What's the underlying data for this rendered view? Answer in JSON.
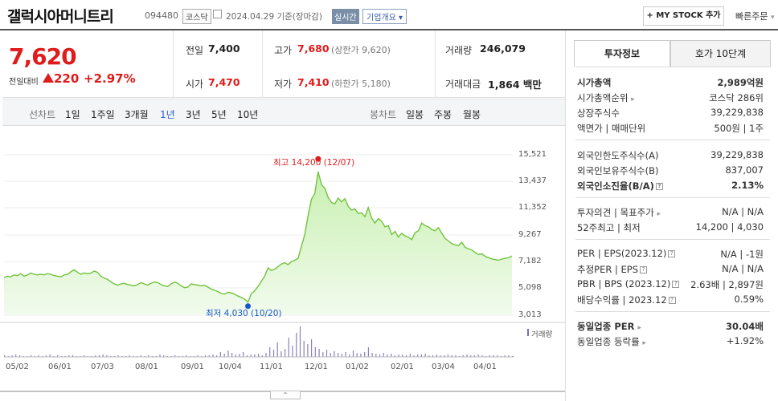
{
  "header": {
    "company_name": "갤럭시아머니트리",
    "code": "094480",
    "market": "코스닥",
    "date": "2024.04.29",
    "basis": "기준(장마감)",
    "live_label": "실시간",
    "company_info": "기업개요",
    "mystock_label": "+ MY STOCK 추가",
    "quick_order": "빠른주문"
  },
  "price": {
    "current": "7,620",
    "change_label": "전일대비",
    "change_value": "220",
    "change_pct": "+2.97%",
    "prev_label": "전일",
    "prev_value": "7,400",
    "high_label": "고가",
    "high_value": "7,680",
    "upper_limit": "(상한가 9,620)",
    "volume_label": "거래량",
    "volume_value": "246,079",
    "open_label": "시가",
    "open_value": "7,470",
    "low_label": "저가",
    "low_value": "7,410",
    "lower_limit": "(하한가 5,180)",
    "amount_label": "거래대금",
    "amount_value": "1,864",
    "amount_unit": "백만"
  },
  "tabs": {
    "line_head": "선차트",
    "line_items": [
      "1일",
      "1주일",
      "3개월",
      "1년",
      "3년",
      "5년",
      "10년"
    ],
    "active": "1년",
    "candle_head": "봉차트",
    "candle_items": [
      "일봉",
      "주봉",
      "월봉"
    ]
  },
  "chart_data": {
    "type": "area",
    "y_ticks": [
      "15,521",
      "13,437",
      "11,352",
      "9,267",
      "7,182",
      "5,098",
      "3,013"
    ],
    "ylim": [
      3013,
      15521
    ],
    "x_ticks": [
      "05/02",
      "06/01",
      "07/03",
      "08/01",
      "09/01",
      "10/04",
      "11/01",
      "12/01",
      "01/02",
      "02/01",
      "03/04",
      "04/01"
    ],
    "high_label": "최고 14,200 (12/07)",
    "low_label": "최저 4,030 (10/20)",
    "high_value": 14200,
    "low_value": 4030,
    "volume_legend": "거래량",
    "line_color": "#72c33d",
    "up_color": "#e01b1b",
    "low_color": "#1a57c9",
    "series": [
      {
        "values": [
          5950,
          6050,
          6000,
          6150,
          6100,
          6250,
          6050,
          6150,
          6300,
          6200,
          6150,
          6200,
          6150,
          6250,
          6200,
          6100,
          6050,
          6000,
          6150,
          6200,
          6400,
          6550,
          6350,
          6200,
          6300,
          6250,
          6300,
          6450,
          6350,
          6050,
          5900,
          5800,
          5600,
          5450,
          5350,
          5450,
          5500,
          5400,
          5350,
          5300,
          5400,
          5550,
          5450,
          5350,
          5500,
          5600,
          5550,
          5400,
          5300,
          5250,
          5450,
          5600,
          5500,
          5300,
          5150,
          5200,
          5450,
          5400,
          5350,
          5300,
          5350,
          5200,
          5050,
          4950,
          4850,
          4700,
          4650,
          4800,
          4750,
          4650,
          4500,
          4400,
          4250,
          4030,
          4700,
          4900,
          5250,
          5650,
          6050,
          6700,
          6500,
          6600,
          6800,
          7000,
          7100,
          6950,
          7200,
          7300,
          7450,
          8400,
          9300,
          10800,
          12050,
          12500,
          14200,
          13200,
          12900,
          12200,
          11800,
          11700,
          12150,
          11850,
          12100,
          11500,
          11200,
          11300,
          10950,
          11000,
          10700,
          11400,
          10600,
          10200,
          10550,
          10350,
          9900,
          10000,
          9300,
          9550,
          9100,
          9400,
          9200,
          9100,
          8900,
          9450,
          9600,
          10200,
          10000,
          9900,
          9700,
          9600,
          9850,
          9400,
          9000,
          8800,
          8600,
          8500,
          8450,
          8700,
          8300,
          8200,
          8100,
          7900,
          7750,
          7800,
          7600,
          7500,
          7400,
          7350,
          7300,
          7400,
          7450,
          7500,
          7620
        ]
      }
    ]
  },
  "right_panel": {
    "tab_on": "투자정보",
    "tab_off": "호가 10단계",
    "rows1": [
      {
        "l": "시가총액",
        "r": "2,989억원"
      },
      {
        "l": "시가총액순위",
        "r": "코스닥 286위"
      },
      {
        "l": "상장주식수",
        "r": "39,229,838"
      },
      {
        "l": "액면가 | 매매단위",
        "r": "500원 | 1주"
      }
    ],
    "rows2": [
      {
        "l": "외국인한도주식수(A)",
        "r": "39,229,838"
      },
      {
        "l": "외국인보유주식수(B)",
        "r": "837,007"
      },
      {
        "l": "외국인소진율(B/A)",
        "r": "2.13%"
      }
    ],
    "rows3": [
      {
        "l": "투자의견 | 목표주가",
        "r": "N/A | N/A"
      },
      {
        "l": "52주최고 | 최저",
        "r": "14,200 | 4,030"
      }
    ],
    "rows4": [
      {
        "l": "PER | EPS(2023.12)",
        "r": "N/A | -1원"
      },
      {
        "l": "추정PER | EPS",
        "r": "N/A | N/A"
      },
      {
        "l": "PBR | BPS (2023.12)",
        "r": "2.63배 | 2,897원"
      },
      {
        "l": "배당수익률 | 2023.12",
        "r": "0.59%"
      }
    ],
    "rows5": [
      {
        "l": "동일업종 PER",
        "r": "30.04배"
      },
      {
        "l": "동일업종 등락률",
        "r": "+1.92%"
      }
    ]
  }
}
